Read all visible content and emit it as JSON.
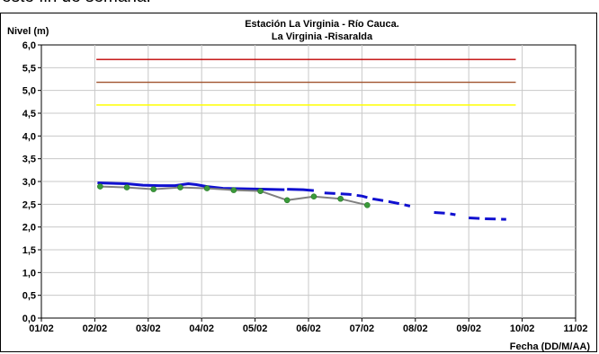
{
  "page_top_text": "este fin de semana.",
  "chart_data": {
    "type": "line",
    "title": "Estación La Virginia  - Río Cauca.",
    "subtitle": "La Virginia -Risaralda",
    "ylabel": "Nivel (m)",
    "xlabel": "Fecha (DD/M/AA)",
    "ylim": [
      0,
      6
    ],
    "yticks": [
      "0,0",
      "0,5",
      "1,0",
      "1,5",
      "2,0",
      "2,5",
      "3,0",
      "3,5",
      "4,0",
      "4,5",
      "5,0",
      "5,5",
      "6,0"
    ],
    "xlim": [
      0,
      10
    ],
    "xticks": [
      "01/02",
      "02/02",
      "03/02",
      "04/02",
      "05/02",
      "06/02",
      "07/02",
      "08/02",
      "09/02",
      "10/02",
      "11/02"
    ],
    "grid": true,
    "colors": {
      "threshold_red": "#c00000",
      "threshold_orange": "#a0522d",
      "threshold_yellow": "#ffff00",
      "observed_level": "#1010d0",
      "manual_reading": "#808080",
      "manual_marker": "#3a9a3a"
    },
    "thresholds": [
      {
        "y": 5.68,
        "x_start": 1.03,
        "x_end": 8.88,
        "color": "#c00000"
      },
      {
        "y": 5.18,
        "x_start": 1.03,
        "x_end": 8.88,
        "color": "#a0522d"
      },
      {
        "y": 4.68,
        "x_start": 1.03,
        "x_end": 8.88,
        "color": "#ffff00"
      }
    ],
    "series": [
      {
        "style": "solid-blue",
        "segments": [
          [
            [
              1.05,
              2.97
            ],
            [
              1.3,
              2.96
            ],
            [
              1.6,
              2.95
            ],
            [
              1.9,
              2.92
            ],
            [
              2.2,
              2.91
            ],
            [
              2.5,
              2.91
            ],
            [
              2.75,
              2.95
            ],
            [
              2.9,
              2.93
            ],
            [
              3.1,
              2.89
            ],
            [
              3.4,
              2.85
            ],
            [
              3.8,
              2.84
            ],
            [
              4.2,
              2.83
            ],
            [
              4.55,
              2.82
            ]
          ],
          [
            [
              4.6,
              2.83
            ],
            [
              4.9,
              2.82
            ],
            [
              5.1,
              2.8
            ]
          ]
        ]
      },
      {
        "style": "dashed-blue",
        "segments": [
          [
            [
              5.3,
              2.75
            ],
            [
              5.75,
              2.72
            ],
            [
              6.0,
              2.68
            ],
            [
              6.2,
              2.62
            ],
            [
              6.5,
              2.56
            ],
            [
              6.75,
              2.5
            ],
            [
              6.9,
              2.46
            ]
          ],
          [
            [
              7.35,
              2.32
            ],
            [
              7.6,
              2.3
            ],
            [
              7.75,
              2.27
            ]
          ],
          [
            [
              8.0,
              2.2
            ],
            [
              8.3,
              2.18
            ],
            [
              8.7,
              2.17
            ]
          ]
        ]
      },
      {
        "style": "gray-with-markers",
        "points": [
          [
            1.1,
            2.89
          ],
          [
            1.6,
            2.87
          ],
          [
            2.1,
            2.83
          ],
          [
            2.6,
            2.87
          ],
          [
            3.1,
            2.85
          ],
          [
            3.6,
            2.81
          ],
          [
            4.1,
            2.79
          ],
          [
            4.6,
            2.59
          ],
          [
            5.1,
            2.67
          ],
          [
            5.6,
            2.62
          ],
          [
            6.1,
            2.48
          ]
        ]
      }
    ]
  }
}
